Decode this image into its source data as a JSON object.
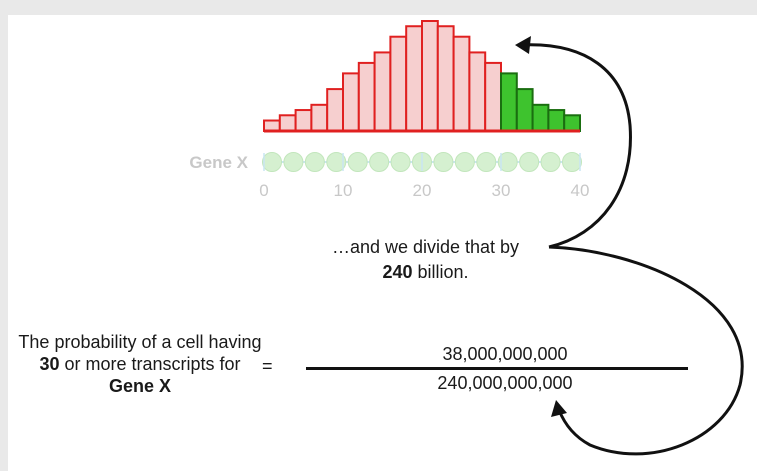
{
  "chart_data": {
    "type": "bar",
    "categories": [
      "0",
      "2",
      "4",
      "6",
      "8",
      "10",
      "12",
      "14",
      "16",
      "18",
      "20",
      "22",
      "24",
      "26",
      "28",
      "30",
      "32",
      "34",
      "36",
      "38"
    ],
    "values": [
      2,
      3,
      4,
      5,
      8,
      11,
      13,
      15,
      18,
      20,
      21,
      20,
      18,
      15,
      13,
      11,
      8,
      5,
      4,
      3
    ],
    "highlight_from_index": 15,
    "fill_colors": {
      "base": "#f6cfcf",
      "base_edge": "#e02020",
      "highlight": "#3ec32e",
      "highlight_edge": "#1a6e10"
    },
    "axis": {
      "label": "Gene X",
      "ticks": [
        "0",
        "10",
        "20",
        "30",
        "40"
      ],
      "tick_values": [
        0,
        10,
        20,
        30,
        40
      ],
      "xlim": [
        0,
        40
      ],
      "dot_count": 15,
      "dot_color": "#d5f0d0",
      "line_color": "#c9e6f2"
    }
  },
  "caption": {
    "line1": "…and we divide that by",
    "line2_bold": "240",
    "line2_rest": " billion."
  },
  "formula": {
    "label_part1": "The probability of a cell having ",
    "label_bold1": "30",
    "label_part2": " or more transcripts for ",
    "label_bold2": "Gene X",
    "equals": "=",
    "numerator": "38,000,000,000",
    "denominator": "240,000,000,000"
  }
}
